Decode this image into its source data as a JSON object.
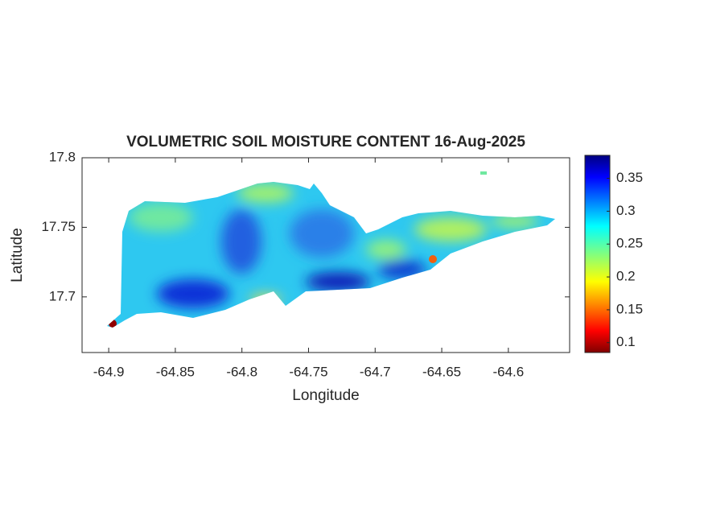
{
  "chart_data": {
    "type": "heatmap",
    "title": "VOLUMETRIC SOIL MOISTURE CONTENT 16-Aug-2025",
    "x_label": "Longitude",
    "y_label": "Latitude",
    "xlim": [
      -64.92,
      -64.554
    ],
    "xticks": [
      -64.9,
      -64.85,
      -64.8,
      -64.75,
      -64.7,
      -64.65,
      -64.6
    ],
    "ylim": [
      17.66,
      17.8
    ],
    "yticks": [
      17.7,
      17.75,
      17.8
    ],
    "colormap": "jet",
    "clim": [
      0.085,
      0.385
    ],
    "cticks": [
      0.1,
      0.15,
      0.2,
      0.25,
      0.3,
      0.35
    ]
  }
}
